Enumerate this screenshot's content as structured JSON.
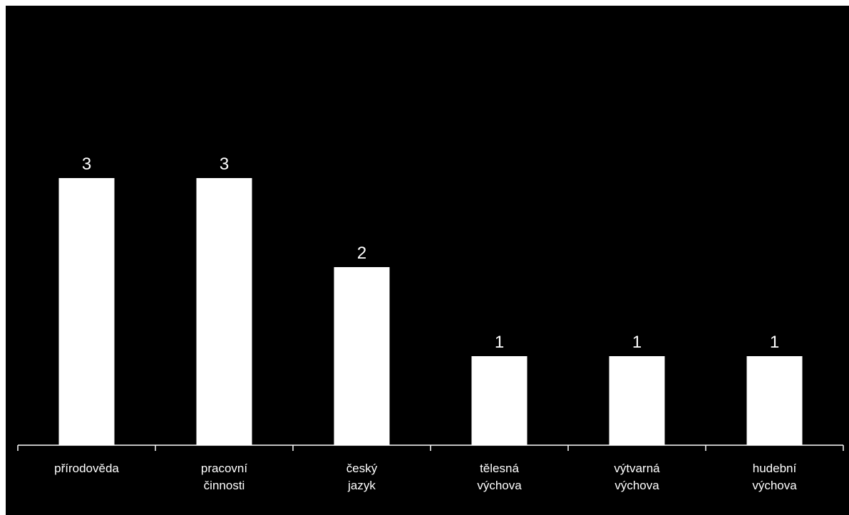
{
  "chart_data": {
    "type": "bar",
    "categories": [
      [
        "přírodověda"
      ],
      [
        "pracovní",
        "činnosti"
      ],
      [
        "český",
        "jazyk"
      ],
      [
        "tělesná",
        "výchova"
      ],
      [
        "výtvarná",
        "výchova"
      ],
      [
        "hudební",
        "výchova"
      ]
    ],
    "values": [
      3,
      3,
      2,
      1,
      1,
      1
    ],
    "data_labels": [
      "3",
      "3",
      "2",
      "1",
      "1",
      "1"
    ],
    "ylim": [
      0,
      4
    ],
    "grid": false,
    "legend": "none",
    "colors": {
      "background": "#000000",
      "bar": "#ffffff",
      "axis": "#ffffff",
      "text": "#ffffff"
    }
  }
}
